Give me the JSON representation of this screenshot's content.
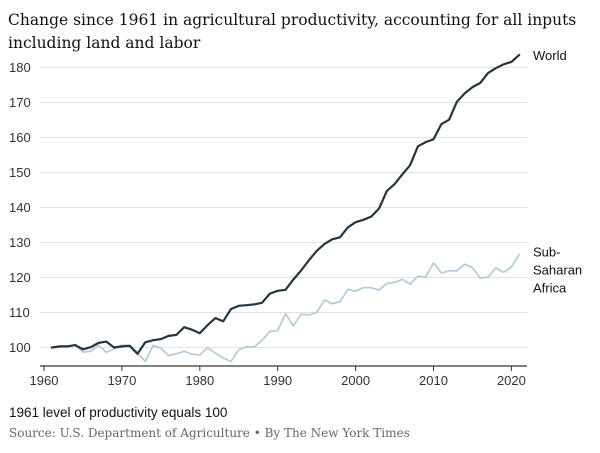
{
  "title": "Change since 1961 in agricultural productivity, accounting for all inputs including land and labor",
  "note": "1961 level of productivity equals 100",
  "source": "Source: U.S. Department of Agriculture • By The New York Times",
  "colors": {
    "world": "#24353f",
    "africa": "#b3cbd8",
    "grid": "#e2e2e2",
    "axis": "#333333"
  },
  "chart_data": {
    "type": "line",
    "title": "Change since 1961 in agricultural productivity, accounting for all inputs including land and labor",
    "xlabel": "",
    "ylabel": "",
    "xlim": [
      1960,
      2022
    ],
    "ylim": [
      95,
      185
    ],
    "xticks": [
      1960,
      1970,
      1980,
      1990,
      2000,
      2010,
      2020
    ],
    "yticks": [
      100,
      110,
      120,
      130,
      140,
      150,
      160,
      170,
      180
    ],
    "grid": true,
    "legend": "direct labels at line ends",
    "x": [
      1961,
      1962,
      1963,
      1964,
      1965,
      1966,
      1967,
      1968,
      1969,
      1970,
      1971,
      1972,
      1973,
      1974,
      1975,
      1976,
      1977,
      1978,
      1979,
      1980,
      1981,
      1982,
      1983,
      1984,
      1985,
      1986,
      1987,
      1988,
      1989,
      1990,
      1991,
      1992,
      1993,
      1994,
      1995,
      1996,
      1997,
      1998,
      1999,
      2000,
      2001,
      2002,
      2003,
      2004,
      2005,
      2006,
      2007,
      2008,
      2009,
      2010,
      2011,
      2012,
      2013,
      2014,
      2015,
      2016,
      2017,
      2018,
      2019,
      2020,
      2021
    ],
    "series": [
      {
        "name": "World",
        "values": [
          100,
          100.3,
          100.3,
          100.7,
          99.5,
          100.1,
          101.3,
          101.7,
          100,
          100.3,
          100.5,
          98.2,
          101.5,
          102.1,
          102.4,
          103.3,
          103.6,
          105.8,
          105.1,
          104.1,
          106.4,
          108.4,
          107.5,
          111,
          111.9,
          112.1,
          112.3,
          112.8,
          115.4,
          116.2,
          116.5,
          119.4,
          122,
          124.9,
          127.6,
          129.6,
          130.9,
          131.5,
          134.3,
          135.8,
          136.5,
          137.4,
          139.7,
          144.7,
          146.7,
          149.5,
          152.1,
          157.5,
          158.7,
          159.5,
          163.8,
          165.1,
          170.2,
          172.6,
          174.4,
          175.6,
          178.4,
          179.8,
          180.9,
          181.6,
          183.6
        ],
        "label": "World"
      },
      {
        "name": "Sub-Saharan Africa",
        "values": [
          100,
          100.2,
          100.5,
          100.8,
          98.7,
          98.9,
          100.7,
          98.6,
          99.6,
          100.7,
          100.6,
          98.5,
          96,
          100.6,
          99.8,
          97.7,
          98.2,
          98.9,
          98.1,
          97.9,
          99.9,
          98.4,
          97,
          96,
          99.4,
          100.2,
          100.2,
          102.1,
          104.6,
          104.8,
          109.7,
          106.2,
          109.5,
          109.3,
          110,
          113.6,
          112.5,
          113.1,
          116.6,
          116.1,
          117.1,
          117.1,
          116.4,
          118.3,
          118.6,
          119.5,
          118.1,
          120.4,
          120.1,
          124.2,
          121.3,
          121.9,
          121.9,
          123.8,
          122.8,
          119.8,
          120.1,
          122.7,
          121.5,
          123,
          126.6
        ],
        "label": [
          "Sub-",
          "Saharan",
          "Africa"
        ]
      }
    ]
  }
}
